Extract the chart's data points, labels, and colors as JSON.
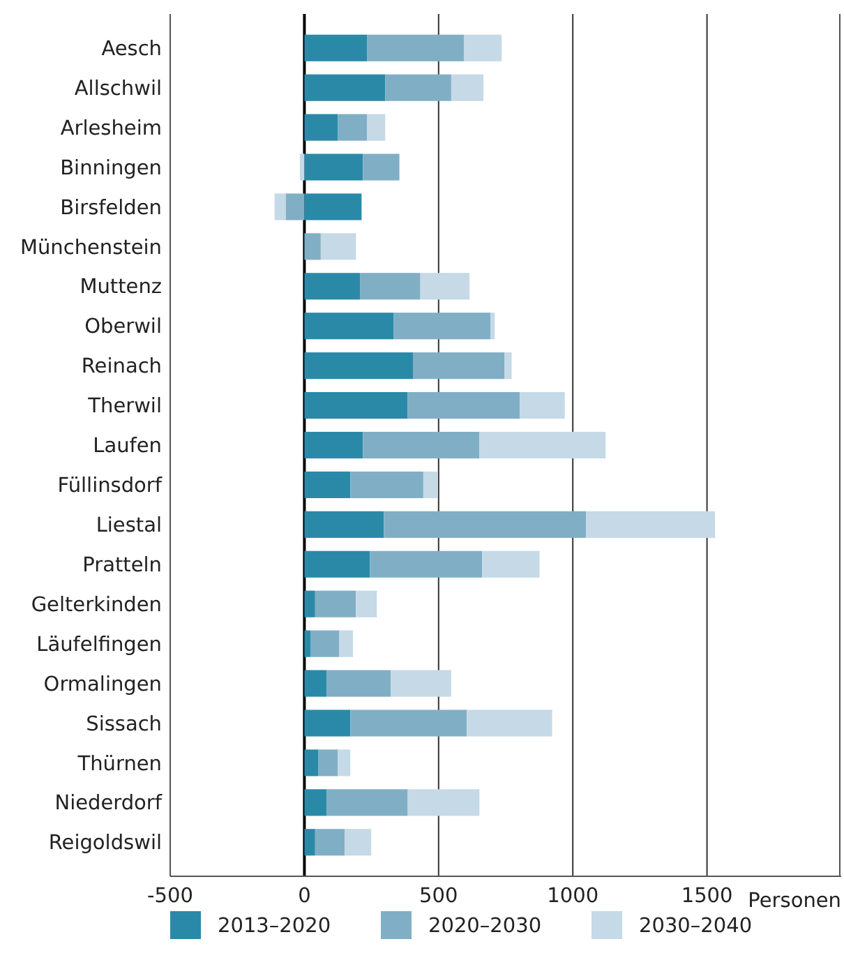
{
  "chart_data": {
    "type": "bar",
    "orientation": "horizontal",
    "stacked": true,
    "categories": [
      "Aesch",
      "Allschwil",
      "Arlesheim",
      "Binningen",
      "Birsfelden",
      "Münchenstein",
      "Muttenz",
      "Oberwil",
      "Reinach",
      "Therwil",
      "Laufen",
      "Füllinsdorf",
      "Liestal",
      "Pratteln",
      "Gelterkinden",
      "Läufelfingen",
      "Ormalingen",
      "Sissach",
      "Thürnen",
      "Niederdorf",
      "Reigoldswil"
    ],
    "series": [
      {
        "name": "2013–2020",
        "color": "#2b89a8",
        "values": [
          233,
          301,
          124,
          218,
          213,
          0,
          207,
          333,
          406,
          385,
          218,
          171,
          296,
          244,
          40,
          24,
          82,
          171,
          51,
          82,
          40
        ]
      },
      {
        "name": "2020–2030",
        "color": "#80afc5",
        "values": [
          361,
          246,
          109,
          136,
          -70,
          61,
          225,
          360,
          340,
          418,
          434,
          272,
          753,
          418,
          152,
          105,
          240,
          434,
          73,
          303,
          110
        ]
      },
      {
        "name": "2030–2040",
        "color": "#c5d9e6",
        "values": [
          141,
          120,
          68,
          -17,
          -41,
          131,
          183,
          16,
          26,
          167,
          470,
          52,
          481,
          214,
          78,
          52,
          225,
          318,
          47,
          267,
          99
        ]
      }
    ],
    "xlim": [
      -500,
      2000
    ],
    "xticks": [
      -500,
      0,
      500,
      1000,
      1500
    ],
    "xlabel": "Personen",
    "grid": "x",
    "legend": "bottom"
  }
}
